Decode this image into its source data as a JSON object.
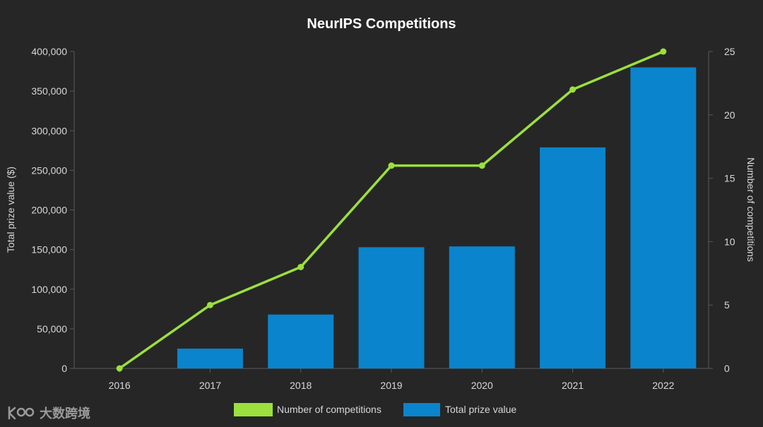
{
  "chart_data": {
    "type": "bar",
    "title": "NeurIPS Competitions",
    "categories": [
      "2016",
      "2017",
      "2018",
      "2019",
      "2020",
      "2021",
      "2022"
    ],
    "series": [
      {
        "name": "Total prize value",
        "type": "bar",
        "axis": "left",
        "color": "#0a84cc",
        "values": [
          0,
          25000,
          68000,
          153000,
          154000,
          279000,
          380000
        ]
      },
      {
        "name": "Number of competitions",
        "type": "line",
        "axis": "right",
        "color": "#9be03c",
        "values": [
          0,
          5,
          8,
          16,
          16,
          22,
          25
        ]
      }
    ],
    "ylabel": "Total prize value ($)",
    "y2label": "Number of competitions",
    "ylim": [
      0,
      400000
    ],
    "y2lim": [
      0,
      25
    ],
    "yticks": [
      "0",
      "50,000",
      "100,000",
      "150,000",
      "200,000",
      "250,000",
      "300,000",
      "350,000",
      "400,000"
    ],
    "y2ticks": [
      "0",
      "5",
      "10",
      "15",
      "20",
      "25"
    ],
    "legend": "bottom-center",
    "grid": false
  },
  "watermark": {
    "text": "大数跨境"
  }
}
